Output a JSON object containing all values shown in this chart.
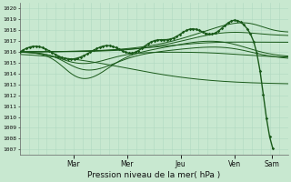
{
  "bg_color": "#c8e8d0",
  "grid_color": "#b0d8c0",
  "line_color": "#1a5a1a",
  "xlabel": "Pression niveau de la mer( hPa )",
  "ylim": [
    1006.5,
    1020.5
  ],
  "yticks": [
    1007,
    1008,
    1009,
    1010,
    1011,
    1012,
    1013,
    1014,
    1015,
    1016,
    1017,
    1018,
    1019,
    1020
  ],
  "day_labels": [
    "Mar",
    "Mer",
    "Jeu",
    "Ven",
    "Sam"
  ],
  "day_positions": [
    1.0,
    2.0,
    3.0,
    4.0,
    4.7
  ],
  "xlim": [
    0,
    5.0
  ],
  "figsize": [
    3.2,
    2.0
  ],
  "dpi": 100
}
